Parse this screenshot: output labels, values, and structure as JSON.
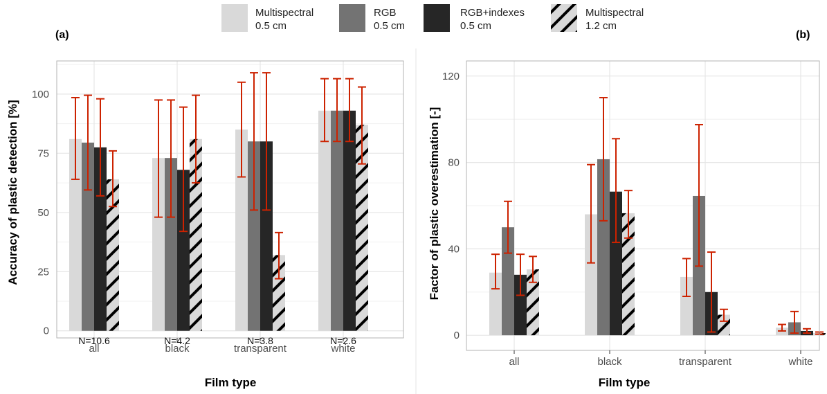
{
  "legend": {
    "items": [
      {
        "line1": "Multispectral",
        "line2": "0.5 cm",
        "color": "#d9d9d9",
        "hatched": false
      },
      {
        "line1": "RGB",
        "line2": "0.5 cm",
        "color": "#737373",
        "hatched": false
      },
      {
        "line1": "RGB+indexes",
        "line2": "0.5 cm",
        "color": "#262626",
        "hatched": false
      },
      {
        "line1": "Multispectral",
        "line2": "1.2 cm",
        "color": "#d9d9d9",
        "hatched": true
      }
    ]
  },
  "colors": {
    "errorbar": "#cc2200",
    "grid": "#e6e6e6",
    "panel_border": "#b3b3b3",
    "hatch": "#000000"
  },
  "chart_data": [
    {
      "panel_label": "(a)",
      "type": "bar",
      "xlabel": "Film type",
      "ylabel": "Accuracy of plastic detection [%]",
      "ylim": [
        -3,
        114
      ],
      "yticks": [
        0,
        25,
        50,
        75,
        100
      ],
      "categories": [
        "all",
        "black",
        "transparent",
        "white"
      ],
      "series": [
        {
          "values": [
            81,
            73,
            85,
            93
          ],
          "err_low": [
            64,
            48,
            65,
            80
          ],
          "err_high": [
            98.5,
            97.5,
            105,
            106.5
          ]
        },
        {
          "values": [
            79.5,
            73,
            80,
            93
          ],
          "err_low": [
            59.5,
            48,
            51,
            80
          ],
          "err_high": [
            99.5,
            97.5,
            109,
            106.5
          ]
        },
        {
          "values": [
            77.5,
            68,
            80,
            93
          ],
          "err_low": [
            57,
            42,
            51,
            80
          ],
          "err_high": [
            98,
            94.5,
            109,
            106.5
          ]
        },
        {
          "values": [
            64,
            81,
            32,
            87
          ],
          "err_low": [
            52.5,
            62.5,
            22,
            70.5
          ],
          "err_high": [
            76,
            99.5,
            41.5,
            103
          ]
        }
      ],
      "annotations": [
        "N=10.6",
        "N=4.2",
        "N=3.8",
        "N=2.6"
      ],
      "grid": true
    },
    {
      "panel_label": "(b)",
      "type": "bar",
      "xlabel": "Film type",
      "ylabel": "Factor of plastic overestimation [-]",
      "ylim": [
        -7,
        127
      ],
      "yticks": [
        0,
        40,
        80,
        120
      ],
      "categories": [
        "all",
        "black",
        "transparent",
        "white"
      ],
      "series": [
        {
          "values": [
            29,
            56,
            27,
            3.5
          ],
          "err_low": [
            21.5,
            33.5,
            18,
            2
          ],
          "err_high": [
            37.5,
            79,
            35.5,
            5
          ]
        },
        {
          "values": [
            50,
            81.5,
            64.5,
            6
          ],
          "err_low": [
            38,
            53,
            32,
            1
          ],
          "err_high": [
            62,
            110,
            97.5,
            11
          ]
        },
        {
          "values": [
            28,
            66.5,
            20,
            2
          ],
          "err_low": [
            18.5,
            43,
            1.5,
            1
          ],
          "err_high": [
            37.5,
            91,
            38.5,
            3
          ]
        },
        {
          "values": [
            30.5,
            56.5,
            9.5,
            1
          ],
          "err_low": [
            24.5,
            45,
            6.5,
            0.5
          ],
          "err_high": [
            36.5,
            67,
            12,
            1.5
          ]
        }
      ],
      "grid": true
    }
  ]
}
